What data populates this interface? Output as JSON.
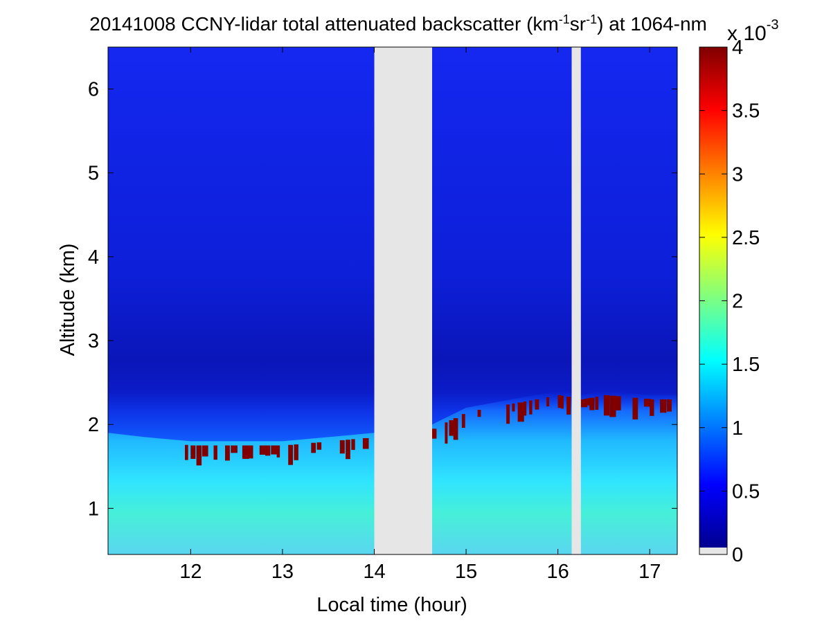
{
  "chart_data": {
    "type": "heatmap",
    "title": {
      "prefix": "20141008 CCNY-lidar total attenuated backscatter (km",
      "sup1": "-1",
      "mid": "sr",
      "sup2": "-1",
      "suffix": ") at 1064-nm"
    },
    "xlabel": "Local time (hour)",
    "ylabel": "Altitude (km)",
    "xlim": [
      11.1,
      17.3
    ],
    "ylim": [
      0.45,
      6.5
    ],
    "x_ticks": [
      12,
      13,
      14,
      15,
      16,
      17
    ],
    "y_ticks": [
      1,
      2,
      3,
      4,
      5,
      6
    ],
    "missing_data_periods": [
      [
        14.0,
        14.63
      ],
      [
        16.15,
        16.25
      ]
    ],
    "aerosol_layer_top_km": [
      {
        "t": 11.1,
        "top": 1.75
      },
      {
        "t": 11.5,
        "top": 1.7
      },
      {
        "t": 12.0,
        "top": 1.65
      },
      {
        "t": 12.5,
        "top": 1.65
      },
      {
        "t": 13.0,
        "top": 1.65
      },
      {
        "t": 13.5,
        "top": 1.7
      },
      {
        "t": 14.0,
        "top": 1.75
      },
      {
        "t": 14.63,
        "top": 1.85
      },
      {
        "t": 15.0,
        "top": 2.05
      },
      {
        "t": 15.5,
        "top": 2.15
      },
      {
        "t": 16.0,
        "top": 2.25
      },
      {
        "t": 16.25,
        "top": 2.2
      },
      {
        "t": 16.5,
        "top": 2.25
      },
      {
        "t": 17.0,
        "top": 2.2
      },
      {
        "t": 17.3,
        "top": 2.2
      }
    ],
    "colorbar": {
      "colormap": "jet",
      "range": [
        0,
        4
      ],
      "ticks": [
        "0",
        "0.5",
        "1",
        "1.5",
        "2",
        "2.5",
        "3",
        "3.5",
        "4"
      ],
      "tick_values": [
        0,
        0.5,
        1,
        1.5,
        2,
        2.5,
        3,
        3.5,
        4
      ],
      "multiplier_base": "x 10",
      "multiplier_exp": "-3",
      "missing_color": "#e6e6e6"
    },
    "background_color": "#e6e6e6"
  }
}
